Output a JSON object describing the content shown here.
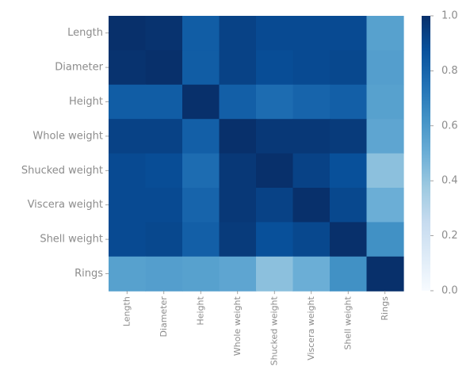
{
  "chart_data": {
    "type": "heatmap",
    "title": "",
    "xlabel": "",
    "ylabel": "",
    "rows": [
      "Length",
      "Diameter",
      "Height",
      "Whole weight",
      "Shucked weight",
      "Viscera weight",
      "Shell weight",
      "Rings"
    ],
    "columns": [
      "Length",
      "Diameter",
      "Height",
      "Whole weight",
      "Shucked weight",
      "Viscera weight",
      "Shell weight",
      "Rings"
    ],
    "values": [
      [
        1.0,
        0.99,
        0.83,
        0.93,
        0.9,
        0.9,
        0.9,
        0.56
      ],
      [
        0.99,
        1.0,
        0.83,
        0.93,
        0.89,
        0.9,
        0.91,
        0.57
      ],
      [
        0.83,
        0.83,
        1.0,
        0.82,
        0.77,
        0.8,
        0.82,
        0.56
      ],
      [
        0.93,
        0.93,
        0.82,
        1.0,
        0.97,
        0.97,
        0.96,
        0.54
      ],
      [
        0.9,
        0.89,
        0.77,
        0.97,
        1.0,
        0.93,
        0.88,
        0.42
      ],
      [
        0.9,
        0.9,
        0.8,
        0.97,
        0.93,
        1.0,
        0.91,
        0.5
      ],
      [
        0.9,
        0.91,
        0.82,
        0.96,
        0.88,
        0.91,
        1.0,
        0.63
      ],
      [
        0.56,
        0.57,
        0.56,
        0.54,
        0.42,
        0.5,
        0.63,
        1.0
      ]
    ],
    "colormap": "Blues",
    "vmin": 0.0,
    "vmax": 1.0,
    "colorbar_ticks": [
      "0.0",
      "0.2",
      "0.4",
      "0.6",
      "0.8",
      "1.0"
    ],
    "grid": false
  }
}
